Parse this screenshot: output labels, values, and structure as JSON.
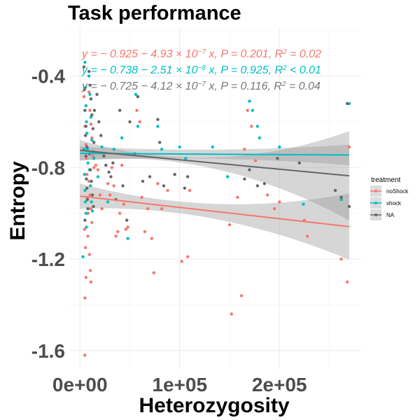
{
  "chart_data": {
    "type": "scatter",
    "title": "Task performance",
    "xlabel": "Heterozygosity",
    "ylabel": "Entropy",
    "xlim": [
      -10000,
      282000
    ],
    "ylim": [
      -1.68,
      -0.19
    ],
    "x_ticks": [
      0,
      100000,
      200000
    ],
    "x_tick_labels": [
      "0e+00",
      "1e+05",
      "2e+05"
    ],
    "y_ticks": [
      -0.4,
      -0.8,
      -1.2,
      -1.6
    ],
    "y_tick_labels": [
      "-0.4",
      "-0.8",
      "-1.2",
      "-1.6"
    ],
    "grid": true,
    "legend": {
      "title": "treatment",
      "position": "right",
      "entries": [
        {
          "label": "noShock",
          "color": "#F8766D"
        },
        {
          "label": "shock",
          "color": "#00BFC4"
        },
        {
          "label": "NA",
          "color": "#666666"
        }
      ]
    },
    "equations": [
      {
        "color": "#F8766D",
        "parts": [
          "y = − 0.925 − 4.93 × 10",
          "−7",
          " x, P = 0.201, R",
          "2",
          " = 0.02"
        ]
      },
      {
        "color": "#00BFC4",
        "parts": [
          "y = − 0.738 − 2.51 × 10",
          "−8",
          " x, P = 0.925, R",
          "2",
          " < 0.01"
        ]
      },
      {
        "color": "#777777",
        "parts": [
          "y = − 0.725 − 4.12 × 10",
          "−7",
          " x, P = 0.116, R",
          "2",
          " = 0.04"
        ]
      }
    ],
    "series": [
      {
        "name": "noShock",
        "color": "#F8766D",
        "fit": {
          "x": [
            0,
            270000
          ],
          "y": [
            -0.925,
            -1.058
          ]
        },
        "ci_halfwidth": {
          "x": [
            0,
            135000,
            270000
          ],
          "hw": [
            0.055,
            0.033,
            0.145
          ]
        },
        "points": [
          [
            4000,
            -0.49
          ],
          [
            5000,
            -0.62
          ],
          [
            6000,
            -0.7
          ],
          [
            6500,
            -0.76
          ],
          [
            7000,
            -0.83
          ],
          [
            7500,
            -0.93
          ],
          [
            8000,
            -1.0
          ],
          [
            4500,
            -1.07
          ],
          [
            5500,
            -1.15
          ],
          [
            6000,
            -1.28
          ],
          [
            5000,
            -1.37
          ],
          [
            4800,
            -1.62
          ],
          [
            9000,
            -0.47
          ],
          [
            10000,
            -0.55
          ],
          [
            11000,
            -0.61
          ],
          [
            12000,
            -0.67
          ],
          [
            13000,
            -0.75
          ],
          [
            14000,
            -0.8
          ],
          [
            9000,
            -0.86
          ],
          [
            10000,
            -0.92
          ],
          [
            11000,
            -0.98
          ],
          [
            12000,
            -1.04
          ],
          [
            8000,
            -1.1
          ],
          [
            9500,
            -1.18
          ],
          [
            10500,
            -1.25
          ],
          [
            11000,
            -1.3
          ],
          [
            16000,
            -0.79
          ],
          [
            18000,
            -0.81
          ],
          [
            20000,
            -0.92
          ],
          [
            22000,
            -0.98
          ],
          [
            24000,
            -0.74
          ],
          [
            26000,
            -0.79
          ],
          [
            28000,
            -0.87
          ],
          [
            30000,
            -0.92
          ],
          [
            32000,
            -0.8
          ],
          [
            34000,
            -0.88
          ],
          [
            36000,
            -1.1
          ],
          [
            38000,
            -1.08
          ],
          [
            40000,
            -1.0
          ],
          [
            42000,
            -0.79
          ],
          [
            44000,
            -0.96
          ],
          [
            46000,
            -1.07
          ],
          [
            48000,
            -1.06
          ],
          [
            57000,
            -0.55
          ],
          [
            60000,
            -0.6
          ],
          [
            62000,
            -0.93
          ],
          [
            65000,
            -1.08
          ],
          [
            68000,
            -0.98
          ],
          [
            72000,
            -1.11
          ],
          [
            74000,
            -1.26
          ],
          [
            78000,
            -0.87
          ],
          [
            82000,
            -0.98
          ],
          [
            88000,
            -0.9
          ],
          [
            95000,
            -0.83
          ],
          [
            102000,
            -1.21
          ],
          [
            108000,
            -1.19
          ],
          [
            110000,
            -0.9
          ],
          [
            150000,
            -1.05
          ],
          [
            152000,
            -1.44
          ],
          [
            158000,
            -0.93
          ],
          [
            162000,
            -1.36
          ],
          [
            165000,
            -0.72
          ],
          [
            168000,
            -0.55
          ],
          [
            172000,
            -0.62
          ],
          [
            176000,
            -0.77
          ],
          [
            188000,
            -0.92
          ],
          [
            195000,
            -0.98
          ],
          [
            200000,
            -0.95
          ],
          [
            225000,
            -1.03
          ],
          [
            228000,
            -1.1
          ],
          [
            262000,
            -1.2
          ],
          [
            268000,
            -1.3
          ],
          [
            270000,
            -0.71
          ]
        ]
      },
      {
        "name": "shock",
        "color": "#00BFC4",
        "fit": {
          "x": [
            0,
            270000
          ],
          "y": [
            -0.738,
            -0.745
          ]
        },
        "ci_halfwidth": {
          "x": [
            0,
            135000,
            270000
          ],
          "hw": [
            0.03,
            0.02,
            0.045
          ]
        },
        "points": [
          [
            3000,
            -1.19
          ],
          [
            4000,
            -0.72
          ],
          [
            5000,
            -0.34
          ],
          [
            5500,
            -0.45
          ],
          [
            6000,
            -0.53
          ],
          [
            6500,
            -0.6
          ],
          [
            7000,
            -0.65
          ],
          [
            7500,
            -0.72
          ],
          [
            8000,
            -0.78
          ],
          [
            4500,
            -0.83
          ],
          [
            5000,
            -0.9
          ],
          [
            5500,
            -0.95
          ],
          [
            6000,
            -1.0
          ],
          [
            6500,
            -1.06
          ],
          [
            9000,
            -0.4
          ],
          [
            10000,
            -0.48
          ],
          [
            11000,
            -0.58
          ],
          [
            12000,
            -0.68
          ],
          [
            13000,
            -0.73
          ],
          [
            14000,
            -0.76
          ],
          [
            9500,
            -0.81
          ],
          [
            10500,
            -0.88
          ],
          [
            11500,
            -0.95
          ],
          [
            12500,
            -0.99
          ],
          [
            18000,
            -0.84
          ],
          [
            22000,
            -0.71
          ],
          [
            28000,
            -0.95
          ],
          [
            34000,
            -0.72
          ],
          [
            42000,
            -0.67
          ],
          [
            48000,
            -1.11
          ],
          [
            56000,
            -0.48
          ],
          [
            58000,
            -0.62
          ],
          [
            78000,
            -0.62
          ],
          [
            82000,
            -0.72
          ],
          [
            100000,
            -0.71
          ],
          [
            106000,
            -0.76
          ],
          [
            133000,
            -0.71
          ],
          [
            148000,
            -0.84
          ],
          [
            170000,
            -0.51
          ],
          [
            173000,
            -0.55
          ],
          [
            178000,
            -0.62
          ],
          [
            180000,
            -0.67
          ],
          [
            200000,
            -0.71
          ],
          [
            224000,
            -0.96
          ],
          [
            262000,
            -0.94
          ],
          [
            270000,
            -0.52
          ]
        ]
      },
      {
        "name": "NA",
        "color": "#666666",
        "fit": {
          "x": [
            0,
            270000
          ],
          "y": [
            -0.725,
            -0.836
          ]
        },
        "ci_halfwidth": {
          "x": [
            0,
            135000,
            270000
          ],
          "hw": [
            0.045,
            0.025,
            0.195
          ]
        },
        "points": [
          [
            4000,
            -0.36
          ],
          [
            4500,
            -0.46
          ],
          [
            5000,
            -0.55
          ],
          [
            5500,
            -0.66
          ],
          [
            6000,
            -0.75
          ],
          [
            6500,
            -0.85
          ],
          [
            7000,
            -0.89
          ],
          [
            7500,
            -0.94
          ],
          [
            8000,
            -0.98
          ],
          [
            5000,
            -1.03
          ],
          [
            6000,
            -0.62
          ],
          [
            7000,
            -0.71
          ],
          [
            9000,
            -0.38
          ],
          [
            10000,
            -0.44
          ],
          [
            11000,
            -0.5
          ],
          [
            12000,
            -0.57
          ],
          [
            13000,
            -0.63
          ],
          [
            14000,
            -0.69
          ],
          [
            9500,
            -0.74
          ],
          [
            10500,
            -0.81
          ],
          [
            11500,
            -0.86
          ],
          [
            12500,
            -0.92
          ],
          [
            13500,
            -0.97
          ],
          [
            14500,
            -0.55
          ],
          [
            17000,
            -0.48
          ],
          [
            19000,
            -0.6
          ],
          [
            21000,
            -0.66
          ],
          [
            24000,
            -0.75
          ],
          [
            26000,
            -0.79
          ],
          [
            29000,
            -0.82
          ],
          [
            31000,
            -0.84
          ],
          [
            33000,
            -0.78
          ],
          [
            36000,
            -0.94
          ],
          [
            40000,
            -0.55
          ],
          [
            43000,
            -0.88
          ],
          [
            47000,
            -1.03
          ],
          [
            50000,
            -0.6
          ],
          [
            55000,
            -0.74
          ],
          [
            58000,
            -0.49
          ],
          [
            63000,
            -0.86
          ],
          [
            70000,
            -0.84
          ],
          [
            78000,
            -0.59
          ],
          [
            80000,
            -0.69
          ],
          [
            84000,
            -0.88
          ],
          [
            95000,
            -0.83
          ],
          [
            105000,
            -0.89
          ],
          [
            108000,
            -0.84
          ],
          [
            165000,
            -0.85
          ],
          [
            170000,
            -0.81
          ],
          [
            178000,
            -0.88
          ],
          [
            185000,
            -0.87
          ],
          [
            198000,
            -0.76
          ],
          [
            220000,
            -0.78
          ],
          [
            256000,
            -0.9
          ],
          [
            262000,
            -0.93
          ],
          [
            268000,
            -0.52
          ],
          [
            270000,
            -0.97
          ]
        ]
      }
    ]
  }
}
